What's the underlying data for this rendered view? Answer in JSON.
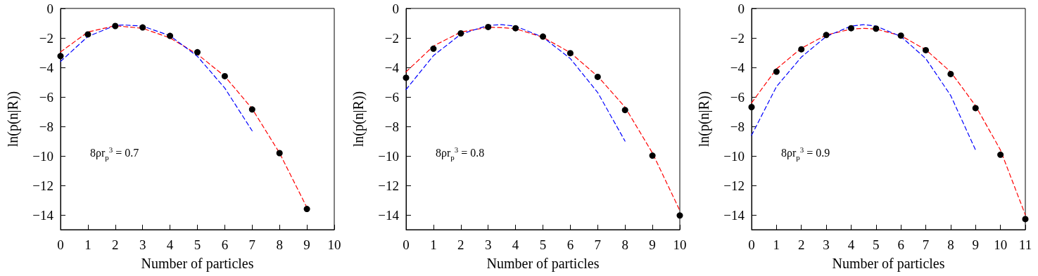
{
  "chart_data": [
    {
      "type": "scatter",
      "xlabel": "Number of particles",
      "ylabel": "ln(p(n|R))",
      "annotations": [
        "8ρr$_{p}$$^{3}$ = 0.7"
      ],
      "xlim": [
        0,
        10
      ],
      "xticks": [
        0,
        1,
        2,
        3,
        4,
        5,
        6,
        7,
        8,
        9,
        10
      ],
      "ylim": [
        -15,
        0
      ],
      "yticks": [
        {
          "value": -14,
          "label": "−14"
        },
        {
          "value": -12,
          "label": "−12"
        },
        {
          "value": -10,
          "label": "−10"
        },
        {
          "value": -8,
          "label": "−8"
        },
        {
          "value": -6,
          "label": "−6"
        },
        {
          "value": -4,
          "label": "−4"
        },
        {
          "value": -2,
          "label": "−2"
        },
        {
          "value": 0,
          "label": "0"
        }
      ],
      "grid": false,
      "series": [
        {
          "type": "line",
          "color": "#ff0000",
          "marker": "none",
          "line_style": "dashed",
          "x": [
            0,
            1,
            2,
            3,
            4,
            5,
            6,
            7,
            8,
            9
          ],
          "values": [
            -2.95,
            -1.6,
            -1.17,
            -1.35,
            -2.0,
            -3.1,
            -4.6,
            -6.8,
            -9.8,
            -13.5
          ]
        },
        {
          "type": "line",
          "color": "#0000ff",
          "marker": "none",
          "line_style": "dashed",
          "x": [
            0,
            1,
            2,
            2.3,
            3,
            4,
            5,
            6,
            7
          ],
          "values": [
            -3.6,
            -1.9,
            -1.15,
            -1.12,
            -1.2,
            -1.85,
            -3.25,
            -5.4,
            -8.3
          ]
        },
        {
          "color": "#000000",
          "marker": "circle",
          "x": [
            0,
            1,
            2,
            3,
            4,
            5,
            6,
            7,
            8,
            9
          ],
          "values": [
            -3.23,
            -1.76,
            -1.19,
            -1.29,
            -1.86,
            -2.97,
            -4.59,
            -6.85,
            -9.81,
            -13.6
          ]
        }
      ]
    },
    {
      "type": "scatter",
      "xlabel": "Number of particles",
      "ylabel": "ln(p(n|R))",
      "annotations": [
        "8ρr$_{p}$$^{3}$ = 0.8"
      ],
      "xlim": [
        0,
        10
      ],
      "xticks": [
        0,
        1,
        2,
        3,
        4,
        5,
        6,
        7,
        8,
        9,
        10
      ],
      "ylim": [
        -15,
        0
      ],
      "yticks": [
        {
          "value": -14,
          "label": "−14"
        },
        {
          "value": -12,
          "label": "−12"
        },
        {
          "value": -10,
          "label": "−10"
        },
        {
          "value": -8,
          "label": "−8"
        },
        {
          "value": -6,
          "label": "−6"
        },
        {
          "value": -4,
          "label": "−4"
        },
        {
          "value": -2,
          "label": "−2"
        },
        {
          "value": 0,
          "label": "0"
        }
      ],
      "grid": false,
      "series": [
        {
          "type": "line",
          "color": "#ff0000",
          "marker": "none",
          "line_style": "dashed",
          "x": [
            0,
            1,
            2,
            3,
            3.5,
            4,
            5,
            6,
            7,
            8,
            9,
            10
          ],
          "values": [
            -4.3,
            -2.55,
            -1.6,
            -1.28,
            -1.3,
            -1.38,
            -1.95,
            -3.0,
            -4.6,
            -6.7,
            -9.8,
            -13.7
          ]
        },
        {
          "type": "line",
          "color": "#0000ff",
          "marker": "none",
          "line_style": "dashed",
          "x": [
            0,
            1,
            2,
            3,
            3.5,
            4,
            5,
            6,
            7,
            8
          ],
          "values": [
            -5.5,
            -3.2,
            -1.75,
            -1.15,
            -1.1,
            -1.2,
            -1.95,
            -3.4,
            -5.7,
            -9.0
          ]
        },
        {
          "color": "#000000",
          "marker": "circle",
          "x": [
            0,
            1,
            2,
            3,
            4,
            5,
            6,
            7,
            8,
            9,
            10
          ],
          "values": [
            -4.7,
            -2.73,
            -1.69,
            -1.26,
            -1.34,
            -1.91,
            -3.03,
            -4.64,
            -6.89,
            -9.98,
            -14.04
          ]
        }
      ]
    },
    {
      "type": "scatter",
      "xlabel": "Number of particles",
      "ylabel": "ln(p(n|R))",
      "annotations": [
        "8ρr$_{p}$$^{3}$ = 0.9"
      ],
      "xlim": [
        0,
        11
      ],
      "xticks": [
        0,
        1,
        2,
        3,
        4,
        5,
        6,
        7,
        8,
        9,
        10,
        11
      ],
      "ylim": [
        -15,
        0
      ],
      "yticks": [
        {
          "value": -14,
          "label": "−14"
        },
        {
          "value": -12,
          "label": "−12"
        },
        {
          "value": -10,
          "label": "−10"
        },
        {
          "value": -8,
          "label": "−8"
        },
        {
          "value": -6,
          "label": "−6"
        },
        {
          "value": -4,
          "label": "−4"
        },
        {
          "value": -2,
          "label": "−2"
        },
        {
          "value": 0,
          "label": "0"
        }
      ],
      "grid": false,
      "series": [
        {
          "type": "line",
          "color": "#ff0000",
          "marker": "none",
          "line_style": "dashed",
          "x": [
            0,
            1,
            2,
            3,
            4,
            4.5,
            5,
            6,
            7,
            8,
            9,
            10,
            11
          ],
          "values": [
            -6.4,
            -4.1,
            -2.7,
            -1.8,
            -1.4,
            -1.35,
            -1.4,
            -1.85,
            -2.8,
            -4.3,
            -6.6,
            -9.6,
            -14.0
          ]
        },
        {
          "type": "line",
          "color": "#0000ff",
          "marker": "none",
          "line_style": "dashed",
          "x": [
            0,
            1,
            2,
            3,
            4,
            4.5,
            5,
            6,
            7,
            8,
            9
          ],
          "values": [
            -8.6,
            -5.3,
            -3.3,
            -1.9,
            -1.2,
            -1.1,
            -1.2,
            -1.9,
            -3.4,
            -5.9,
            -9.6
          ]
        },
        {
          "color": "#000000",
          "marker": "circle",
          "x": [
            0,
            1,
            2,
            3,
            4,
            5,
            6,
            7,
            8,
            9,
            10,
            11
          ],
          "values": [
            -6.69,
            -4.29,
            -2.77,
            -1.8,
            -1.34,
            -1.37,
            -1.84,
            -2.83,
            -4.45,
            -6.76,
            -9.92,
            -14.28
          ]
        }
      ]
    }
  ]
}
